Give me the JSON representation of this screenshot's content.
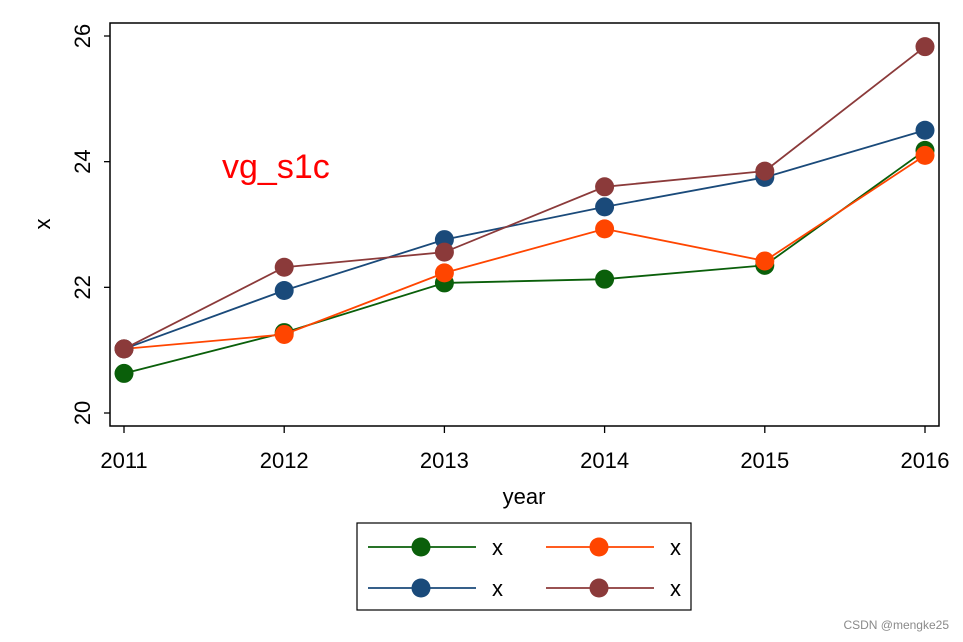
{
  "chart_data": {
    "type": "line",
    "title": "",
    "annotation": "vg_s1c",
    "xlabel": "year",
    "ylabel": "x",
    "xlim": [
      2011,
      2016
    ],
    "ylim": [
      20,
      26
    ],
    "x": [
      2011,
      2012,
      2013,
      2014,
      2015,
      2016
    ],
    "x_ticks": [
      "2011",
      "2012",
      "2013",
      "2014",
      "2015",
      "2016"
    ],
    "y_ticks": [
      "20",
      "22",
      "24",
      "26"
    ],
    "y_tick_values": [
      20,
      22,
      24,
      26
    ],
    "grid": false,
    "legend_position": "bottom",
    "series": [
      {
        "name": "x",
        "color": "#0a5f0a",
        "values": [
          20.63,
          21.28,
          22.07,
          22.13,
          22.35,
          24.18
        ]
      },
      {
        "name": "x",
        "color": "#ff4500",
        "values": [
          21.02,
          21.25,
          22.23,
          22.93,
          22.42,
          24.1
        ]
      },
      {
        "name": "x",
        "color": "#1a4a7a",
        "values": [
          21.02,
          21.95,
          22.76,
          23.28,
          23.75,
          24.5
        ]
      },
      {
        "name": "x",
        "color": "#8b3a3a",
        "values": [
          21.02,
          22.32,
          22.56,
          23.6,
          23.85,
          25.83
        ]
      }
    ],
    "annotation_color": "#ff0000"
  },
  "watermark": "CSDN @mengke25"
}
